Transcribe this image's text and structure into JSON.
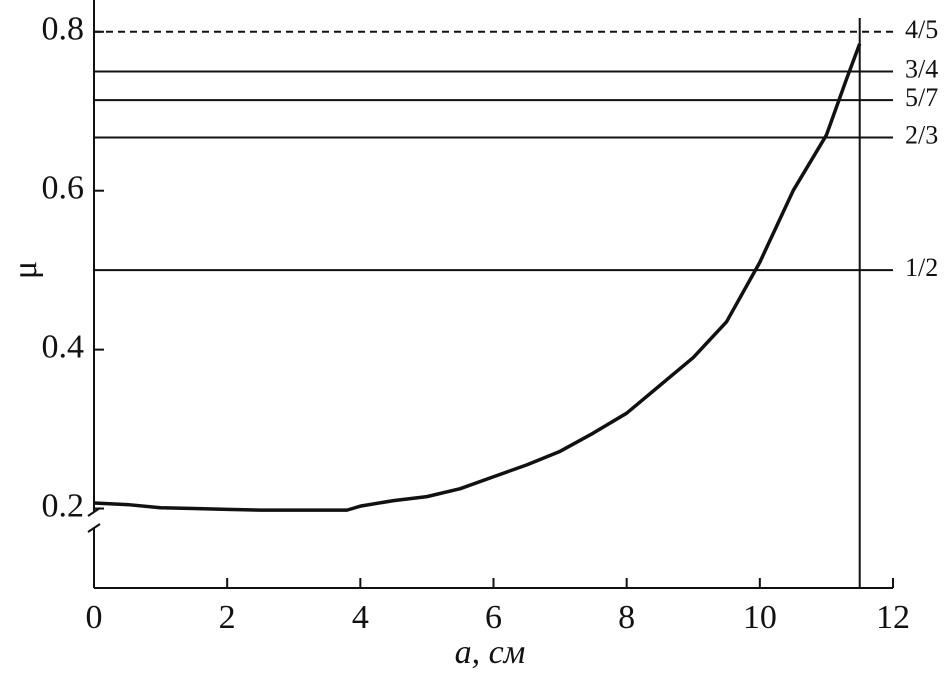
{
  "chart_data": {
    "type": "line",
    "x_label": "a, см",
    "y_label": "μ",
    "x": [
      0,
      0.5,
      1,
      1.5,
      2,
      2.5,
      3,
      3.5,
      3.8,
      4,
      4.5,
      5,
      5.5,
      6,
      6.5,
      7,
      7.5,
      8,
      8.5,
      9,
      9.5,
      10,
      10.5,
      11,
      11.3,
      11.5
    ],
    "series": [
      {
        "color": "#111111",
        "values": [
          0.207,
          0.205,
          0.201,
          0.2,
          0.199,
          0.198,
          0.198,
          0.198,
          0.198,
          0.203,
          0.21,
          0.215,
          0.225,
          0.24,
          0.255,
          0.272,
          0.295,
          0.32,
          0.355,
          0.39,
          0.435,
          0.51,
          0.6,
          0.67,
          0.74,
          0.785
        ]
      }
    ],
    "xlim": [
      0,
      12
    ],
    "ylim": [
      0.1,
      0.84
    ],
    "xticks": [
      0,
      2,
      4,
      6,
      8,
      10,
      12
    ],
    "yticks": [
      0.2,
      0.4,
      0.6,
      0.8
    ],
    "reference_lines": [
      {
        "value": 0.8,
        "label": "4/5",
        "dashed": true
      },
      {
        "value": 0.75,
        "label": "3/4",
        "dashed": false
      },
      {
        "value": 0.714,
        "label": "5/7",
        "dashed": false
      },
      {
        "value": 0.667,
        "label": "2/3",
        "dashed": false
      },
      {
        "value": 0.5,
        "label": "1/2",
        "dashed": false
      }
    ],
    "vline": 11.5
  }
}
